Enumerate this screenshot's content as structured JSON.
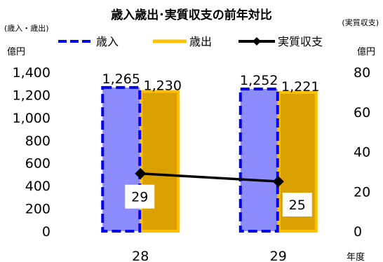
{
  "chart_data": {
    "type": "bar",
    "title": "歳入歳出･実質収支の前年対比",
    "left_axis_note": "(歳入・歳出)",
    "right_axis_note": "(実質収支)",
    "left_unit": "億円",
    "right_unit": "億円",
    "xlabel": "年度",
    "categories": [
      "28",
      "29"
    ],
    "series": [
      {
        "name": "歳入",
        "axis": "left",
        "kind": "bar",
        "values": [
          1265,
          1252
        ],
        "labels": [
          "1,265",
          "1,252"
        ],
        "color": "#8c8cff",
        "border": "#0000ee"
      },
      {
        "name": "歳出",
        "axis": "left",
        "kind": "bar",
        "values": [
          1230,
          1221
        ],
        "labels": [
          "1,230",
          "1,221"
        ],
        "color": "#d9a000",
        "border": "#ffc000"
      },
      {
        "name": "実質収支",
        "axis": "right",
        "kind": "line",
        "values": [
          29,
          25
        ],
        "labels": [
          "29",
          "25"
        ],
        "color": "#000000"
      }
    ],
    "left_axis": {
      "min": 0,
      "max": 1400,
      "ticks": [
        0,
        200,
        400,
        600,
        800,
        1000,
        1200,
        1400
      ],
      "tick_labels": [
        "0",
        "200",
        "400",
        "600",
        "800",
        "1,000",
        "1,200",
        "1,400"
      ]
    },
    "right_axis": {
      "min": 0,
      "max": 80,
      "ticks": [
        0,
        20,
        40,
        60,
        80
      ],
      "tick_labels": [
        "0",
        "20",
        "40",
        "60",
        "80"
      ]
    },
    "grid": false,
    "legend": "top"
  }
}
